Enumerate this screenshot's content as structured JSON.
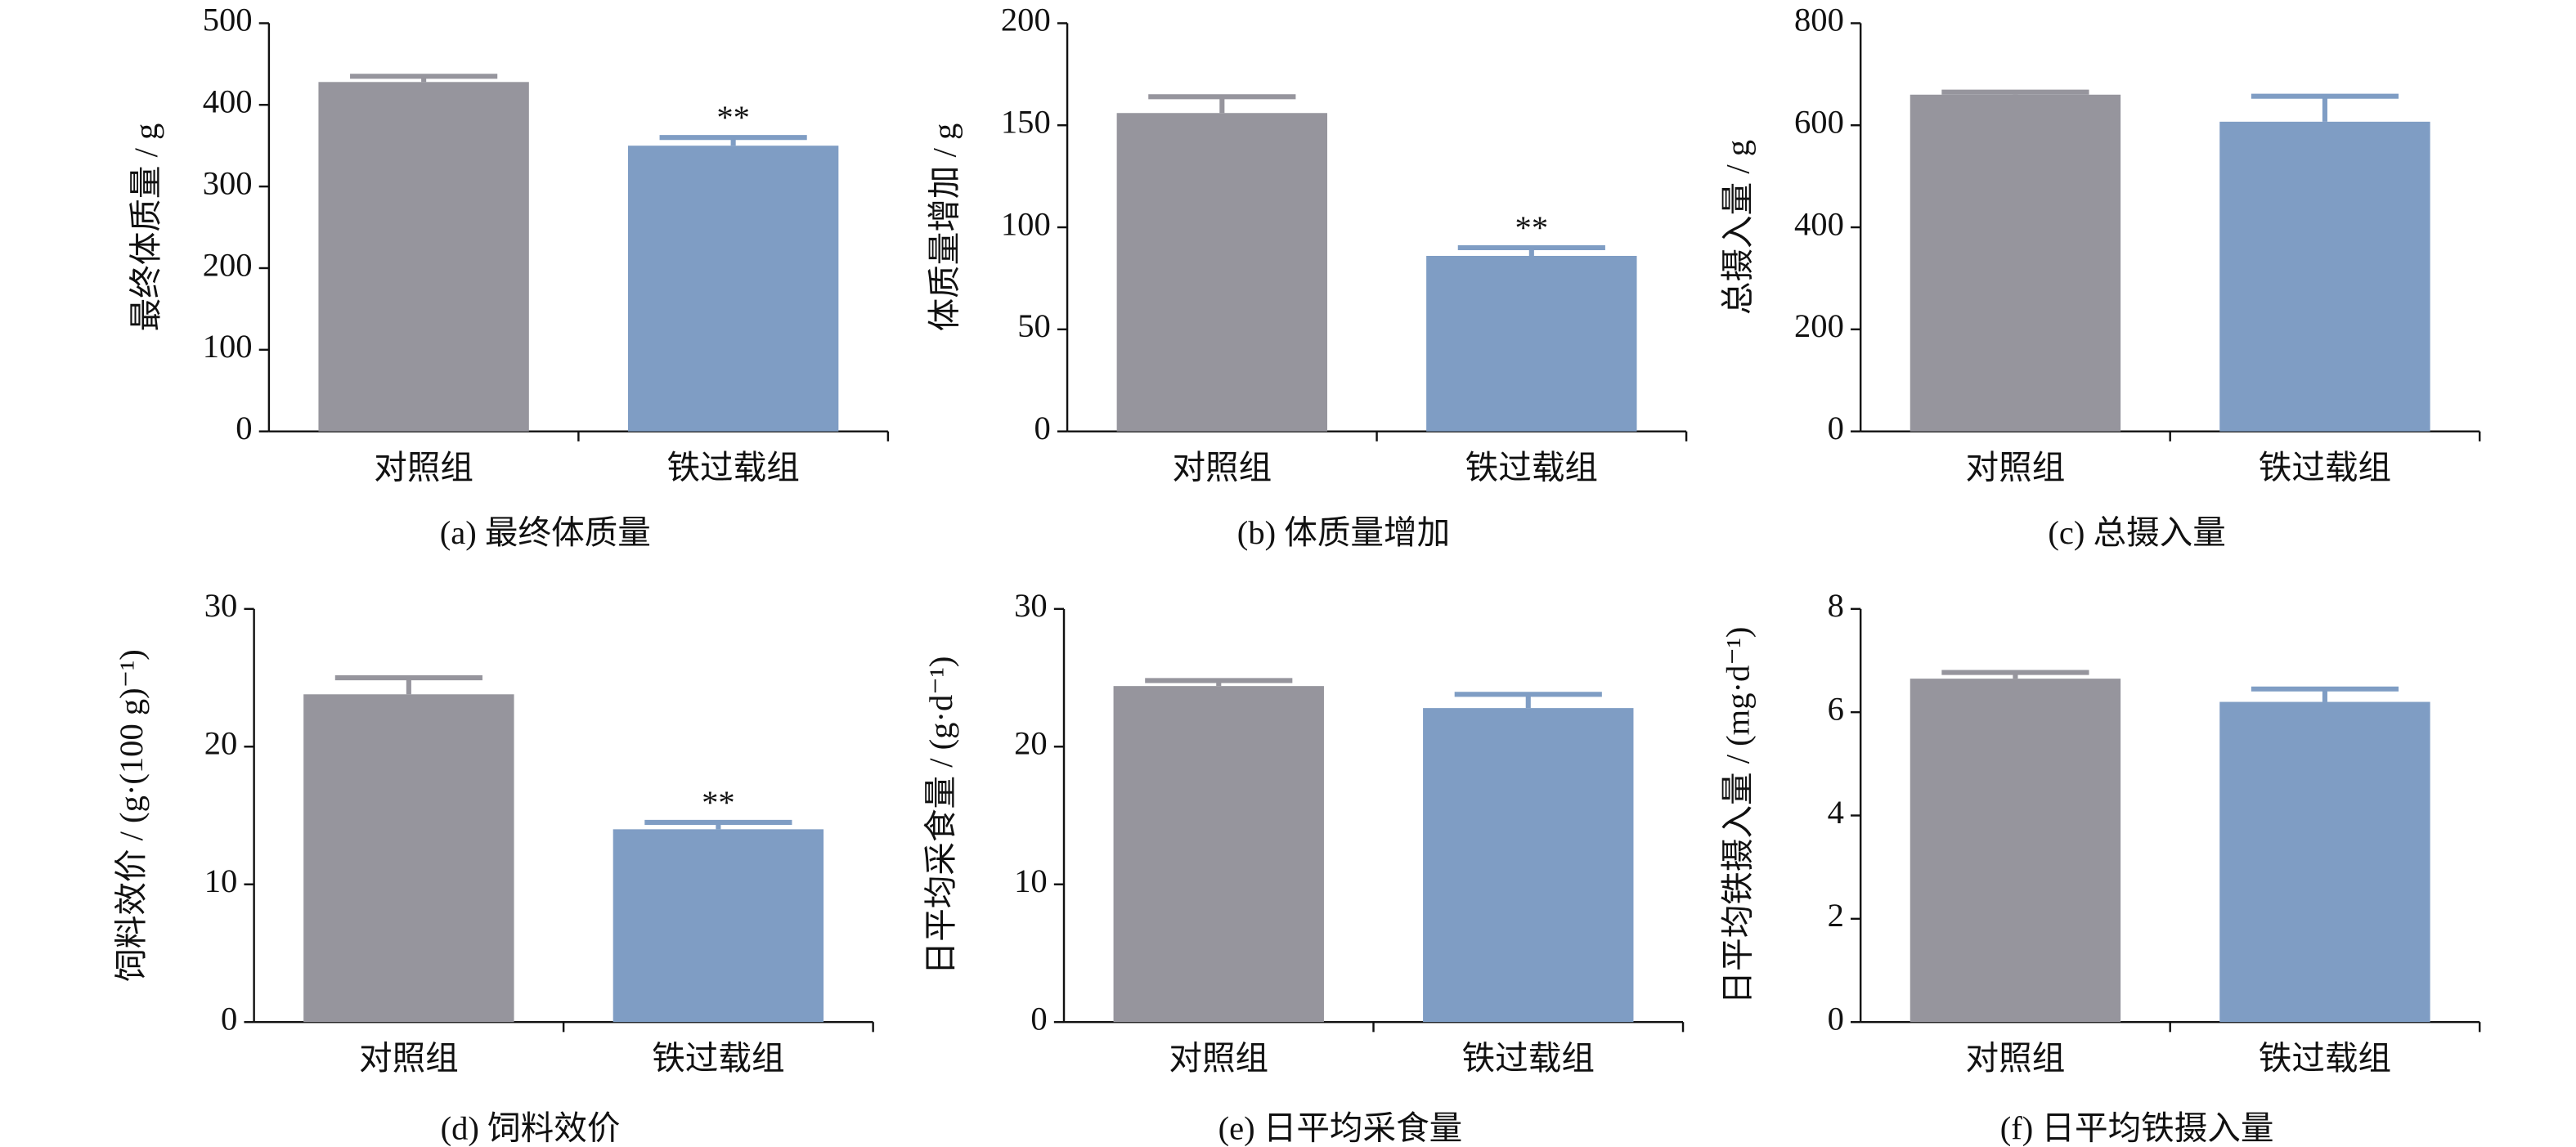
{
  "chart_data": [
    {
      "type": "bar",
      "title": "(a) 最终体质量",
      "ylabel": "最终体质量 / g",
      "categories": [
        "对照组",
        "铁过载组"
      ],
      "values": [
        428,
        350
      ],
      "errors": [
        7,
        10
      ],
      "significance": [
        null,
        "**"
      ],
      "colors": [
        "#96959d",
        "#7f9dc4"
      ],
      "ylim": [
        0,
        500
      ],
      "yticks": [
        0,
        100,
        200,
        300,
        400,
        500
      ]
    },
    {
      "type": "bar",
      "title": "(b) 体质量增加",
      "ylabel": "体质量增加 / g",
      "categories": [
        "对照组",
        "铁过载组"
      ],
      "values": [
        156,
        86
      ],
      "errors": [
        8,
        4
      ],
      "significance": [
        null,
        "**"
      ],
      "colors": [
        "#96959d",
        "#7f9dc4"
      ],
      "ylim": [
        0,
        200
      ],
      "yticks": [
        0,
        50,
        100,
        150,
        200
      ]
    },
    {
      "type": "bar",
      "title": "(c) 总摄入量",
      "ylabel": "总摄入量 / g",
      "categories": [
        "对照组",
        "铁过载组"
      ],
      "values": [
        660,
        607
      ],
      "errors": [
        5,
        50
      ],
      "colors": [
        "#96959d",
        "#7f9dc4"
      ],
      "ylim": [
        0,
        800
      ],
      "yticks": [
        0,
        200,
        400,
        600,
        800
      ]
    },
    {
      "type": "bar",
      "title": "(d) 饲料效价",
      "ylabel": "饲料效价 / (g·(100 g)⁻¹)",
      "categories": [
        "对照组",
        "铁过载组"
      ],
      "values": [
        23.8,
        14
      ],
      "errors": [
        1.2,
        0.5
      ],
      "significance": [
        null,
        "**"
      ],
      "colors": [
        "#96959d",
        "#7f9dc4"
      ],
      "ylim": [
        0,
        30
      ],
      "yticks": [
        0,
        10,
        20,
        30
      ]
    },
    {
      "type": "bar",
      "title": "(e) 日平均采食量",
      "ylabel": "日平均采食量 / (g·d⁻¹)",
      "categories": [
        "对照组",
        "铁过载组"
      ],
      "values": [
        24.4,
        22.8
      ],
      "errors": [
        0.4,
        1.0
      ],
      "colors": [
        "#96959d",
        "#7f9dc4"
      ],
      "ylim": [
        0,
        30
      ],
      "yticks": [
        0,
        10,
        20,
        30
      ]
    },
    {
      "type": "bar",
      "title": "(f) 日平均铁摄入量",
      "ylabel": "日平均铁摄入量 / (mg·d⁻¹)",
      "categories": [
        "对照组",
        "铁过载组"
      ],
      "values": [
        6.65,
        6.2
      ],
      "errors": [
        0.12,
        0.25
      ],
      "colors": [
        "#96959d",
        "#7f9dc4"
      ],
      "ylim": [
        0,
        8
      ],
      "yticks": [
        0,
        2,
        4,
        6,
        8
      ]
    }
  ]
}
